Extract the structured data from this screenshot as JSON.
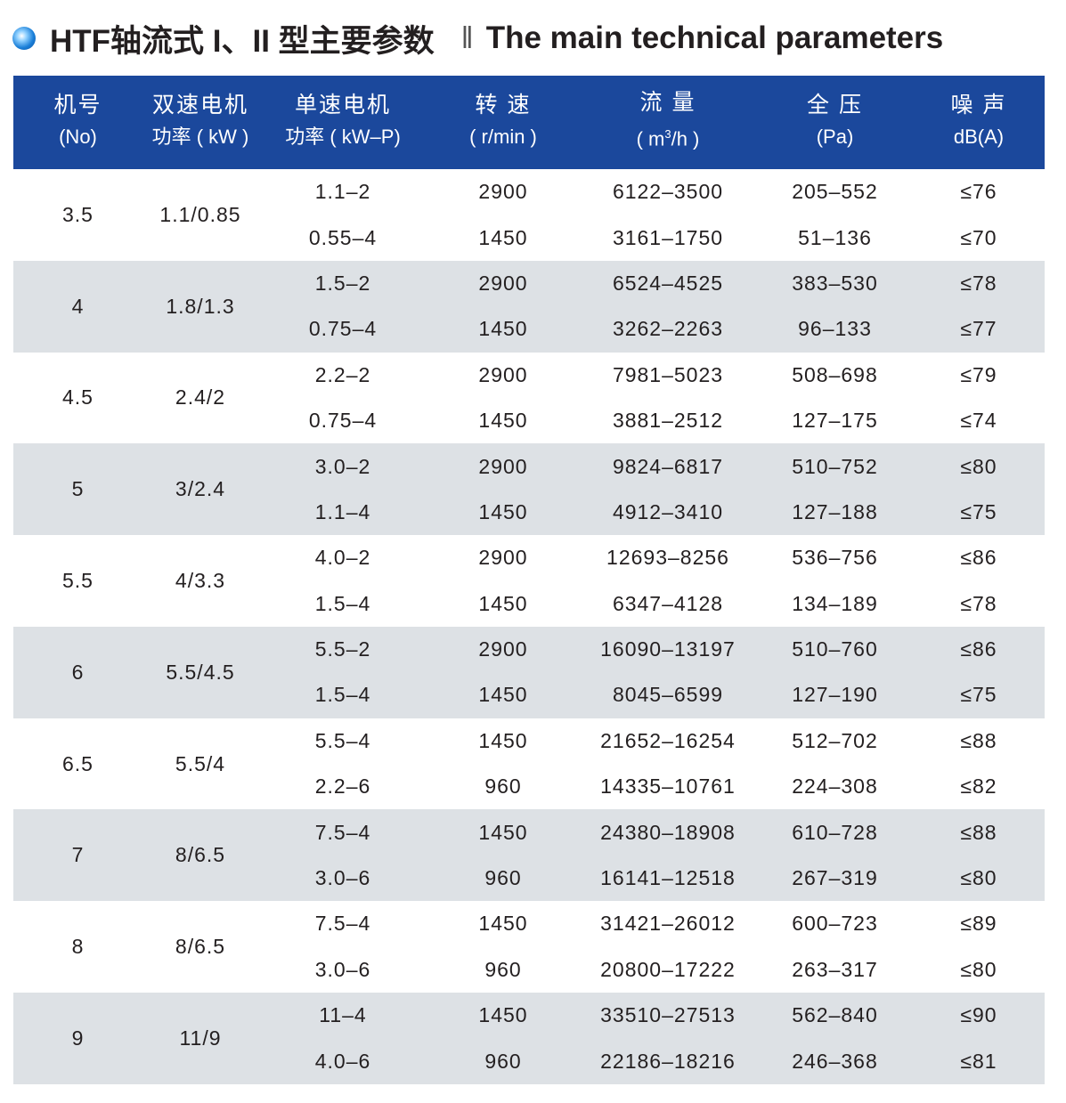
{
  "title": {
    "cn": "HTF轴流式 I、II 型主要参数",
    "separator": "‖",
    "en": "The main technical parameters"
  },
  "colors": {
    "header_bg": "#1b489c",
    "stripe": "#dde1e5"
  },
  "headers": [
    {
      "l1": "机号",
      "l2": "(No)"
    },
    {
      "l1": "双速电机",
      "l2": "功率 ( kW )"
    },
    {
      "l1": "单速电机",
      "l2": "功率 ( kW–P)"
    },
    {
      "l1": "转 速",
      "l2": "( r/min )"
    },
    {
      "l1": "流 量",
      "l2": "( m³/h )"
    },
    {
      "l1": "全 压",
      "l2": "(Pa)"
    },
    {
      "l1": "噪 声",
      "l2": "dB(A)"
    }
  ],
  "groups": [
    {
      "no": "3.5",
      "dual": "1.1/0.85",
      "rows": [
        [
          "1.1–2",
          "2900",
          "6122–3500",
          "205–552",
          "≤76"
        ],
        [
          "0.55–4",
          "1450",
          "3161–1750",
          "51–136",
          "≤70"
        ]
      ]
    },
    {
      "no": "4",
      "dual": "1.8/1.3",
      "rows": [
        [
          "1.5–2",
          "2900",
          "6524–4525",
          "383–530",
          "≤78"
        ],
        [
          "0.75–4",
          "1450",
          "3262–2263",
          "96–133",
          "≤77"
        ]
      ]
    },
    {
      "no": "4.5",
      "dual": "2.4/2",
      "rows": [
        [
          "2.2–2",
          "2900",
          "7981–5023",
          "508–698",
          "≤79"
        ],
        [
          "0.75–4",
          "1450",
          "3881–2512",
          "127–175",
          "≤74"
        ]
      ]
    },
    {
      "no": "5",
      "dual": "3/2.4",
      "rows": [
        [
          "3.0–2",
          "2900",
          "9824–6817",
          "510–752",
          "≤80"
        ],
        [
          "1.1–4",
          "1450",
          "4912–3410",
          "127–188",
          "≤75"
        ]
      ]
    },
    {
      "no": "5.5",
      "dual": "4/3.3",
      "rows": [
        [
          "4.0–2",
          "2900",
          "12693–8256",
          "536–756",
          "≤86"
        ],
        [
          "1.5–4",
          "1450",
          "6347–4128",
          "134–189",
          "≤78"
        ]
      ]
    },
    {
      "no": "6",
      "dual": "5.5/4.5",
      "rows": [
        [
          "5.5–2",
          "2900",
          "16090–13197",
          "510–760",
          "≤86"
        ],
        [
          "1.5–4",
          "1450",
          "8045–6599",
          "127–190",
          "≤75"
        ]
      ]
    },
    {
      "no": "6.5",
      "dual": "5.5/4",
      "rows": [
        [
          "5.5–4",
          "1450",
          "21652–16254",
          "512–702",
          "≤88"
        ],
        [
          "2.2–6",
          "960",
          "14335–10761",
          "224–308",
          "≤82"
        ]
      ]
    },
    {
      "no": "7",
      "dual": "8/6.5",
      "rows": [
        [
          "7.5–4",
          "1450",
          "24380–18908",
          "610–728",
          "≤88"
        ],
        [
          "3.0–6",
          "960",
          "16141–12518",
          "267–319",
          "≤80"
        ]
      ]
    },
    {
      "no": "8",
      "dual": "8/6.5",
      "rows": [
        [
          "7.5–4",
          "1450",
          "31421–26012",
          "600–723",
          "≤89"
        ],
        [
          "3.0–6",
          "960",
          "20800–17222",
          "263–317",
          "≤80"
        ]
      ]
    },
    {
      "no": "9",
      "dual": "11/9",
      "rows": [
        [
          "11–4",
          "1450",
          "33510–27513",
          "562–840",
          "≤90"
        ],
        [
          "4.0–6",
          "960",
          "22186–18216",
          "246–368",
          "≤81"
        ]
      ]
    }
  ]
}
